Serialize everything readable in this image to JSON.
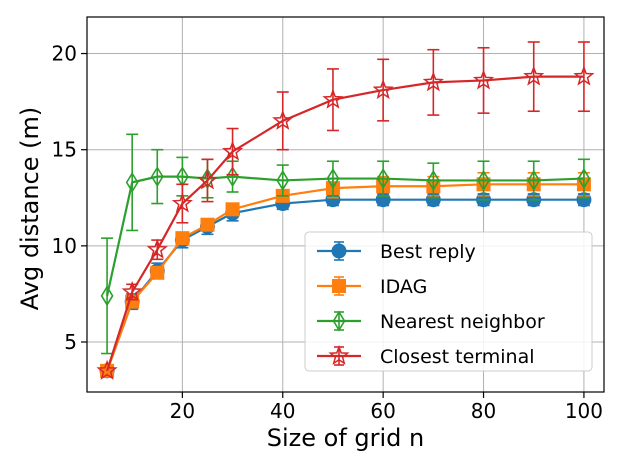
{
  "chart_data": {
    "type": "line",
    "title": "",
    "xlabel": "Size of grid n",
    "ylabel": "Avg distance (m)",
    "xlim": [
      1,
      104
    ],
    "ylim": [
      2.4,
      21.9
    ],
    "xticks": [
      20,
      40,
      60,
      80,
      100
    ],
    "yticks": [
      5,
      10,
      15,
      20
    ],
    "grid": true,
    "legend_position": "lower-right",
    "x": [
      5,
      10,
      15,
      20,
      25,
      30,
      40,
      50,
      60,
      70,
      80,
      90,
      100
    ],
    "series": [
      {
        "name": "Best reply",
        "color": "#1f77b4",
        "marker": "circle",
        "values": [
          3.5,
          7.1,
          8.7,
          10.3,
          11.0,
          11.7,
          12.2,
          12.4,
          12.4,
          12.4,
          12.4,
          12.4,
          12.4
        ],
        "errors": [
          0,
          0.4,
          0.4,
          0.4,
          0.4,
          0.4,
          0.3,
          0.3,
          0.3,
          0.3,
          0.3,
          0.3,
          0.3
        ]
      },
      {
        "name": "IDAG",
        "color": "#ff7f0e",
        "marker": "square",
        "values": [
          3.5,
          7.1,
          8.6,
          10.4,
          11.1,
          11.9,
          12.6,
          13.0,
          13.1,
          13.1,
          13.2,
          13.2,
          13.2
        ],
        "errors": [
          0,
          0.3,
          0.3,
          0.3,
          0.3,
          0.3,
          0.3,
          0.5,
          0.5,
          0.5,
          0.6,
          0.6,
          0.6
        ]
      },
      {
        "name": "Nearest neighbor",
        "color": "#2ca02c",
        "marker": "diamond",
        "values": [
          7.4,
          13.3,
          13.6,
          13.6,
          13.5,
          13.6,
          13.4,
          13.5,
          13.5,
          13.4,
          13.4,
          13.4,
          13.5
        ],
        "errors": [
          3.0,
          2.5,
          1.4,
          1.0,
          1.0,
          0.8,
          0.8,
          0.9,
          0.9,
          0.9,
          1.0,
          1.0,
          1.0
        ]
      },
      {
        "name": "Closest terminal",
        "color": "#d62728",
        "marker": "star",
        "values": [
          3.5,
          7.6,
          9.8,
          12.2,
          13.4,
          14.9,
          16.5,
          17.6,
          18.1,
          18.5,
          18.6,
          18.8,
          18.8
        ],
        "errors": [
          0,
          0.4,
          0.5,
          1.0,
          1.1,
          1.2,
          1.5,
          1.6,
          1.6,
          1.7,
          1.7,
          1.8,
          1.8
        ]
      }
    ]
  }
}
